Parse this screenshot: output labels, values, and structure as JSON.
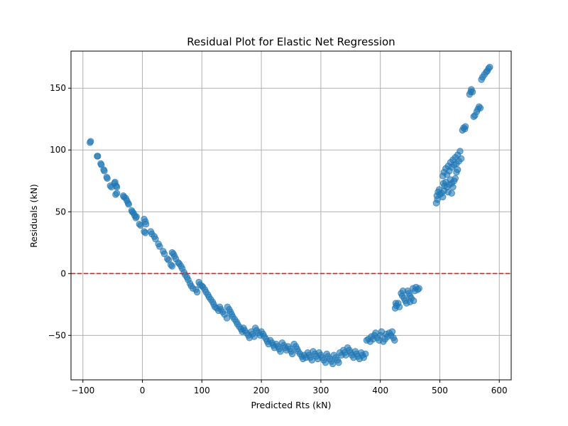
{
  "chart_data": {
    "type": "scatter",
    "title": "Residual Plot for Elastic Net Regression",
    "xlabel": "Predicted Rts (kN)",
    "ylabel": "Residuals (kN)",
    "xlim": [
      -120,
      620
    ],
    "ylim": [
      -86,
      180
    ],
    "xticks": [
      -100,
      0,
      100,
      200,
      300,
      400,
      500,
      600
    ],
    "yticks": [
      -50,
      0,
      50,
      100,
      150
    ],
    "grid": true,
    "marker_color": "#1f77b4",
    "marker_alpha": 0.6,
    "reference_line": {
      "y": 0,
      "color": "#d62728",
      "style": "dashed"
    },
    "series": [
      {
        "points": [
          [
            -88,
            106
          ],
          [
            -87,
            107
          ],
          [
            -76,
            95
          ],
          [
            -75,
            95
          ],
          [
            -70,
            89
          ],
          [
            -69,
            88
          ],
          [
            -65,
            84
          ],
          [
            -64,
            83
          ],
          [
            -60,
            78
          ],
          [
            -59,
            77
          ],
          [
            -54,
            71
          ],
          [
            -52,
            70
          ],
          [
            -47,
            73
          ],
          [
            -46,
            74
          ],
          [
            -44,
            71
          ],
          [
            -43,
            70
          ],
          [
            -45,
            64
          ],
          [
            -43,
            65
          ],
          [
            -32,
            63
          ],
          [
            -31,
            62
          ],
          [
            -28,
            61
          ],
          [
            -26,
            59
          ],
          [
            -24,
            57
          ],
          [
            -23,
            56
          ],
          [
            -18,
            51
          ],
          [
            -17,
            50
          ],
          [
            -15,
            49
          ],
          [
            -13,
            47
          ],
          [
            -11,
            45
          ],
          [
            -10,
            46
          ],
          [
            -5,
            40
          ],
          [
            -3,
            39
          ],
          [
            3,
            44
          ],
          [
            5,
            42
          ],
          [
            6,
            40
          ],
          [
            3,
            34
          ],
          [
            5,
            33
          ],
          [
            14,
            34
          ],
          [
            16,
            32
          ],
          [
            20,
            30
          ],
          [
            22,
            28
          ],
          [
            27,
            24
          ],
          [
            29,
            22
          ],
          [
            35,
            18
          ],
          [
            37,
            16
          ],
          [
            42,
            12
          ],
          [
            44,
            11
          ],
          [
            48,
            7
          ],
          [
            50,
            6
          ],
          [
            50,
            17
          ],
          [
            52,
            16
          ],
          [
            54,
            14
          ],
          [
            56,
            12
          ],
          [
            60,
            9
          ],
          [
            62,
            8
          ],
          [
            65,
            6
          ],
          [
            67,
            4
          ],
          [
            70,
            1
          ],
          [
            72,
            -1
          ],
          [
            75,
            -3
          ],
          [
            77,
            -5
          ],
          [
            80,
            -8
          ],
          [
            82,
            -10
          ],
          [
            85,
            -12
          ],
          [
            90,
            -13
          ],
          [
            92,
            -15
          ],
          [
            95,
            -7
          ],
          [
            97,
            -9
          ],
          [
            100,
            -10
          ],
          [
            102,
            -11
          ],
          [
            105,
            -13
          ],
          [
            107,
            -15
          ],
          [
            110,
            -17
          ],
          [
            112,
            -19
          ],
          [
            115,
            -21
          ],
          [
            118,
            -23
          ],
          [
            120,
            -25
          ],
          [
            122,
            -27
          ],
          [
            125,
            -28
          ],
          [
            128,
            -30
          ],
          [
            130,
            -27
          ],
          [
            132,
            -29
          ],
          [
            135,
            -31
          ],
          [
            138,
            -33
          ],
          [
            142,
            -36
          ],
          [
            143,
            -27
          ],
          [
            146,
            -29
          ],
          [
            148,
            -31
          ],
          [
            150,
            -33
          ],
          [
            152,
            -35
          ],
          [
            155,
            -37
          ],
          [
            158,
            -39
          ],
          [
            160,
            -41
          ],
          [
            163,
            -43
          ],
          [
            166,
            -45
          ],
          [
            168,
            -47
          ],
          [
            170,
            -44
          ],
          [
            172,
            -46
          ],
          [
            175,
            -48
          ],
          [
            178,
            -50
          ],
          [
            180,
            -52
          ],
          [
            183,
            -47
          ],
          [
            185,
            -49
          ],
          [
            188,
            -51
          ],
          [
            190,
            -44
          ],
          [
            192,
            -46
          ],
          [
            195,
            -48
          ],
          [
            198,
            -50
          ],
          [
            200,
            -47
          ],
          [
            203,
            -49
          ],
          [
            205,
            -51
          ],
          [
            208,
            -53
          ],
          [
            210,
            -55
          ],
          [
            212,
            -57
          ],
          [
            215,
            -54
          ],
          [
            218,
            -56
          ],
          [
            220,
            -58
          ],
          [
            222,
            -60
          ],
          [
            225,
            -57
          ],
          [
            228,
            -59
          ],
          [
            230,
            -61
          ],
          [
            232,
            -63
          ],
          [
            235,
            -56
          ],
          [
            238,
            -58
          ],
          [
            240,
            -60
          ],
          [
            242,
            -62
          ],
          [
            245,
            -59
          ],
          [
            248,
            -61
          ],
          [
            250,
            -63
          ],
          [
            252,
            -65
          ],
          [
            255,
            -57
          ],
          [
            258,
            -59
          ],
          [
            260,
            -61
          ],
          [
            262,
            -63
          ],
          [
            265,
            -65
          ],
          [
            268,
            -67
          ],
          [
            270,
            -69
          ],
          [
            272,
            -66
          ],
          [
            275,
            -68
          ],
          [
            278,
            -64
          ],
          [
            280,
            -66
          ],
          [
            282,
            -68
          ],
          [
            285,
            -70
          ],
          [
            287,
            -63
          ],
          [
            290,
            -65
          ],
          [
            292,
            -67
          ],
          [
            295,
            -69
          ],
          [
            297,
            -64
          ],
          [
            300,
            -66
          ],
          [
            302,
            -68
          ],
          [
            305,
            -70
          ],
          [
            308,
            -72
          ],
          [
            310,
            -65
          ],
          [
            312,
            -67
          ],
          [
            315,
            -69
          ],
          [
            318,
            -71
          ],
          [
            320,
            -73
          ],
          [
            322,
            -66
          ],
          [
            325,
            -68
          ],
          [
            328,
            -70
          ],
          [
            330,
            -72
          ],
          [
            332,
            -64
          ],
          [
            335,
            -66
          ],
          [
            338,
            -62
          ],
          [
            340,
            -64
          ],
          [
            342,
            -66
          ],
          [
            345,
            -60
          ],
          [
            348,
            -62
          ],
          [
            350,
            -64
          ],
          [
            352,
            -66
          ],
          [
            355,
            -68
          ],
          [
            358,
            -63
          ],
          [
            360,
            -65
          ],
          [
            362,
            -67
          ],
          [
            365,
            -69
          ],
          [
            368,
            -64
          ],
          [
            370,
            -66
          ],
          [
            372,
            -68
          ],
          [
            375,
            -65
          ],
          [
            377,
            -54
          ],
          [
            380,
            -53
          ],
          [
            383,
            -55
          ],
          [
            385,
            -51
          ],
          [
            388,
            -53
          ],
          [
            390,
            -50
          ],
          [
            392,
            -48
          ],
          [
            395,
            -52
          ],
          [
            398,
            -54
          ],
          [
            400,
            -50
          ],
          [
            402,
            -47
          ],
          [
            405,
            -55
          ],
          [
            408,
            -53
          ],
          [
            410,
            -49
          ],
          [
            412,
            -51
          ],
          [
            415,
            -48
          ],
          [
            418,
            -50
          ],
          [
            420,
            -47
          ],
          [
            422,
            -52
          ],
          [
            424,
            -54
          ],
          [
            425,
            -28
          ],
          [
            427,
            -26
          ],
          [
            430,
            -24
          ],
          [
            432,
            -27
          ],
          [
            435,
            -16
          ],
          [
            437,
            -18
          ],
          [
            440,
            -20
          ],
          [
            442,
            -22
          ],
          [
            444,
            -24
          ],
          [
            446,
            -14
          ],
          [
            448,
            -16
          ],
          [
            450,
            -18
          ],
          [
            452,
            -20
          ],
          [
            455,
            -12
          ],
          [
            458,
            -14
          ],
          [
            460,
            -11
          ],
          [
            463,
            -13
          ],
          [
            465,
            -12
          ],
          [
            426,
            -24
          ],
          [
            438,
            -14
          ],
          [
            450,
            -23
          ],
          [
            456,
            -22
          ],
          [
            495,
            63
          ],
          [
            497,
            66
          ],
          [
            499,
            68
          ],
          [
            494,
            57
          ],
          [
            496,
            60
          ],
          [
            500,
            64
          ],
          [
            503,
            65
          ],
          [
            505,
            62
          ],
          [
            507,
            67
          ],
          [
            506,
            73
          ],
          [
            508,
            71
          ],
          [
            510,
            74
          ],
          [
            512,
            70
          ],
          [
            514,
            66
          ],
          [
            516,
            72
          ],
          [
            518,
            76
          ],
          [
            520,
            73
          ],
          [
            522,
            70
          ],
          [
            505,
            79
          ],
          [
            507,
            82
          ],
          [
            510,
            85
          ],
          [
            512,
            80
          ],
          [
            514,
            87
          ],
          [
            516,
            83
          ],
          [
            518,
            90
          ],
          [
            520,
            86
          ],
          [
            522,
            92
          ],
          [
            524,
            88
          ],
          [
            526,
            94
          ],
          [
            528,
            89
          ],
          [
            530,
            96
          ],
          [
            532,
            91
          ],
          [
            534,
            99
          ],
          [
            536,
            93
          ],
          [
            528,
            82
          ],
          [
            530,
            84
          ],
          [
            524,
            75
          ],
          [
            526,
            77
          ],
          [
            520,
            65
          ],
          [
            538,
            116
          ],
          [
            540,
            118
          ],
          [
            542,
            117
          ],
          [
            543,
            119
          ],
          [
            550,
            145
          ],
          [
            552,
            147
          ],
          [
            553,
            149
          ],
          [
            555,
            147
          ],
          [
            557,
            127
          ],
          [
            559,
            128
          ],
          [
            562,
            131
          ],
          [
            564,
            133
          ],
          [
            566,
            135
          ],
          [
            568,
            134
          ],
          [
            570,
            157
          ],
          [
            572,
            159
          ],
          [
            575,
            161
          ],
          [
            578,
            163
          ],
          [
            580,
            164
          ],
          [
            582,
            166
          ],
          [
            584,
            167
          ]
        ]
      }
    ]
  }
}
